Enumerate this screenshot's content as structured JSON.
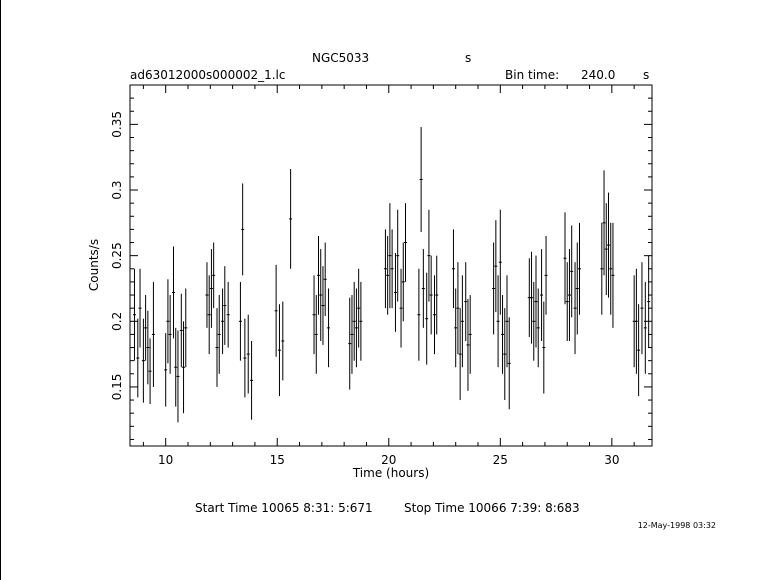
{
  "header": {
    "object_name": "NGC5033",
    "object_unit": "s",
    "filename": "ad63012000s000002_1.lc",
    "bin_time_label": "Bin time:",
    "bin_time_value": "240.0",
    "bin_time_unit": "s"
  },
  "footer": {
    "start_time": "Start Time 10065  8:31: 5:671",
    "stop_time": "Stop Time 10066  7:39: 8:683",
    "timestamp": "12-May-1998 03:32"
  },
  "colors": {
    "foreground": "#000000",
    "background": "#ffffff"
  },
  "chart_data": {
    "type": "scatter",
    "xlabel": "Time (hours)",
    "ylabel": "Counts/s",
    "xlim": [
      8.4,
      31.8
    ],
    "ylim": [
      0.105,
      0.38
    ],
    "xticks": [
      10,
      15,
      20,
      25,
      30
    ],
    "yticks": [
      0.15,
      0.2,
      0.25,
      0.3,
      0.35
    ],
    "ytick_labels": [
      "0.15",
      "0.2",
      "0.25",
      "0.3",
      "0.35"
    ],
    "grid": false,
    "legend": "none",
    "series": [
      {
        "x": [
          8.6,
          8.75,
          8.85,
          9.0,
          9.1,
          9.2,
          9.3,
          9.45,
          10.0,
          10.1,
          10.2,
          10.35,
          10.45,
          10.55,
          10.7,
          10.8,
          10.9,
          11.85,
          11.95,
          12.05,
          12.15,
          12.3,
          12.4,
          12.55,
          12.65,
          12.8,
          13.35,
          13.45,
          13.55,
          13.7,
          13.85,
          14.95,
          15.1,
          15.25,
          15.6,
          16.65,
          16.75,
          16.85,
          16.95,
          17.05,
          17.15,
          17.3,
          18.25,
          18.35,
          18.45,
          18.55,
          18.65,
          18.75,
          19.85,
          19.95,
          20.05,
          20.15,
          20.3,
          20.4,
          20.55,
          20.65,
          20.75,
          21.35,
          21.45,
          21.55,
          21.7,
          21.8,
          21.9,
          22.05,
          22.15,
          22.9,
          23.0,
          23.1,
          23.2,
          23.3,
          23.45,
          23.55,
          23.65,
          24.7,
          24.8,
          24.9,
          25.0,
          25.1,
          25.2,
          25.3,
          25.4,
          26.3,
          26.4,
          26.5,
          26.6,
          26.7,
          26.85,
          26.95,
          27.05,
          27.9,
          28.0,
          28.1,
          28.2,
          28.35,
          28.45,
          28.55,
          29.55,
          29.65,
          29.75,
          29.85,
          29.95,
          30.05,
          31.0,
          31.1,
          31.2,
          31.35,
          31.5,
          31.65
        ],
        "y": [
          0.205,
          0.172,
          0.21,
          0.17,
          0.195,
          0.18,
          0.162,
          0.19,
          0.163,
          0.2,
          0.19,
          0.222,
          0.165,
          0.158,
          0.193,
          0.165,
          0.195,
          0.22,
          0.205,
          0.225,
          0.235,
          0.18,
          0.19,
          0.2,
          0.212,
          0.205,
          0.2,
          0.27,
          0.172,
          0.175,
          0.155,
          0.208,
          0.178,
          0.185,
          0.278,
          0.205,
          0.19,
          0.235,
          0.22,
          0.212,
          0.232,
          0.195,
          0.183,
          0.19,
          0.2,
          0.195,
          0.21,
          0.2,
          0.24,
          0.235,
          0.25,
          0.24,
          0.222,
          0.25,
          0.21,
          0.23,
          0.26,
          0.205,
          0.308,
          0.225,
          0.202,
          0.25,
          0.22,
          0.205,
          0.22,
          0.24,
          0.195,
          0.21,
          0.175,
          0.2,
          0.215,
          0.182,
          0.19,
          0.225,
          0.242,
          0.2,
          0.245,
          0.19,
          0.175,
          0.2,
          0.168,
          0.218,
          0.218,
          0.2,
          0.215,
          0.195,
          0.22,
          0.18,
          0.235,
          0.248,
          0.215,
          0.22,
          0.238,
          0.21,
          0.225,
          0.24,
          0.24,
          0.275,
          0.255,
          0.258,
          0.24,
          0.235,
          0.2,
          0.2,
          0.178,
          0.21,
          0.195,
          0.215
        ],
        "err": [
          0.035,
          0.03,
          0.03,
          0.032,
          0.025,
          0.028,
          0.025,
          0.04,
          0.028,
          0.032,
          0.03,
          0.035,
          0.03,
          0.035,
          0.028,
          0.035,
          0.03,
          0.025,
          0.03,
          0.03,
          0.025,
          0.03,
          0.03,
          0.025,
          0.03,
          0.025,
          0.03,
          0.035,
          0.03,
          0.03,
          0.03,
          0.035,
          0.035,
          0.03,
          0.038,
          0.03,
          0.03,
          0.03,
          0.035,
          0.03,
          0.028,
          0.03,
          0.035,
          0.03,
          0.03,
          0.03,
          0.03,
          0.03,
          0.03,
          0.03,
          0.04,
          0.03,
          0.03,
          0.035,
          0.03,
          0.03,
          0.03,
          0.035,
          0.04,
          0.03,
          0.035,
          0.035,
          0.03,
          0.03,
          0.03,
          0.03,
          0.03,
          0.035,
          0.035,
          0.035,
          0.03,
          0.035,
          0.03,
          0.035,
          0.035,
          0.035,
          0.04,
          0.03,
          0.035,
          0.035,
          0.035,
          0.03,
          0.035,
          0.03,
          0.035,
          0.03,
          0.035,
          0.035,
          0.03,
          0.035,
          0.03,
          0.035,
          0.035,
          0.035,
          0.035,
          0.035,
          0.035,
          0.04,
          0.035,
          0.04,
          0.035,
          0.04,
          0.035,
          0.04,
          0.035,
          0.035,
          0.035,
          0.035
        ]
      }
    ]
  }
}
